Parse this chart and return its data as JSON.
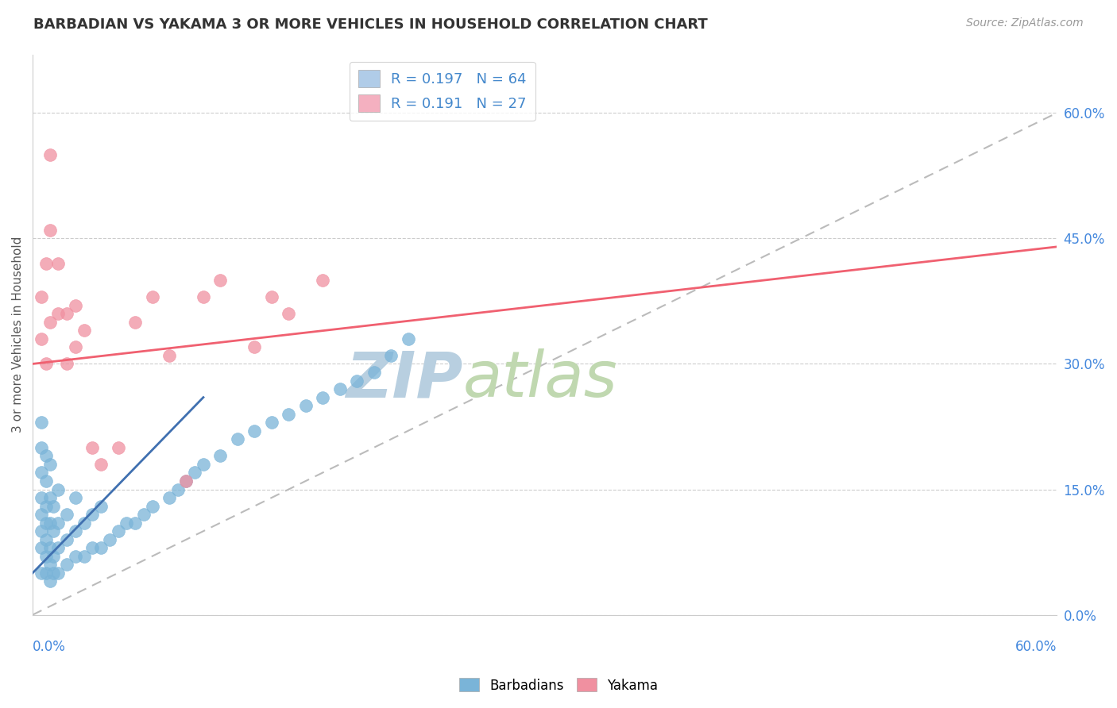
{
  "title": "BARBADIAN VS YAKAMA 3 OR MORE VEHICLES IN HOUSEHOLD CORRELATION CHART",
  "source": "Source: ZipAtlas.com",
  "ylabel": "3 or more Vehicles in Household",
  "ytick_values": [
    0,
    15,
    30,
    45,
    60
  ],
  "xmin": 0,
  "xmax": 60,
  "ymin": 0,
  "ymax": 67,
  "watermark_zip": "ZIP",
  "watermark_atlas": "atlas",
  "watermark_color_zip": "#b8cfe0",
  "watermark_color_atlas": "#c0d8b0",
  "barbadian_color": "#7ab4d8",
  "yakama_color": "#f090a0",
  "barbadian_line_color": "#4070b0",
  "yakama_line_color": "#f06070",
  "ref_line_color": "#bbbbbb",
  "legend_entries": [
    {
      "label": "R = 0.197   N = 64",
      "color": "#b0cce8"
    },
    {
      "label": "R = 0.191   N = 27",
      "color": "#f4b0c0"
    }
  ],
  "barbadian_scatter_x": [
    0.5,
    0.5,
    0.5,
    0.5,
    0.5,
    0.5,
    0.5,
    0.5,
    0.8,
    0.8,
    0.8,
    0.8,
    0.8,
    0.8,
    0.8,
    1.0,
    1.0,
    1.0,
    1.0,
    1.0,
    1.0,
    1.2,
    1.2,
    1.2,
    1.2,
    1.5,
    1.5,
    1.5,
    1.5,
    2.0,
    2.0,
    2.0,
    2.5,
    2.5,
    2.5,
    3.0,
    3.0,
    3.5,
    3.5,
    4.0,
    4.0,
    4.5,
    5.0,
    5.5,
    6.0,
    6.5,
    7.0,
    8.0,
    8.5,
    9.0,
    9.5,
    10.0,
    11.0,
    12.0,
    13.0,
    14.0,
    15.0,
    16.0,
    17.0,
    18.0,
    19.0,
    20.0,
    21.0,
    22.0
  ],
  "barbadian_scatter_y": [
    5,
    8,
    10,
    12,
    14,
    17,
    20,
    23,
    5,
    7,
    9,
    11,
    13,
    16,
    19,
    4,
    6,
    8,
    11,
    14,
    18,
    5,
    7,
    10,
    13,
    5,
    8,
    11,
    15,
    6,
    9,
    12,
    7,
    10,
    14,
    7,
    11,
    8,
    12,
    8,
    13,
    9,
    10,
    11,
    11,
    12,
    13,
    14,
    15,
    16,
    17,
    18,
    19,
    21,
    22,
    23,
    24,
    25,
    26,
    27,
    28,
    29,
    31,
    33
  ],
  "yakama_scatter_x": [
    0.5,
    0.5,
    0.8,
    0.8,
    1.0,
    1.0,
    1.0,
    1.5,
    1.5,
    2.0,
    2.0,
    2.5,
    2.5,
    3.0,
    3.5,
    4.0,
    5.0,
    6.0,
    7.0,
    8.0,
    9.0,
    10.0,
    11.0,
    13.0,
    14.0,
    15.0,
    17.0
  ],
  "yakama_scatter_y": [
    33,
    38,
    30,
    42,
    35,
    46,
    55,
    36,
    42,
    30,
    36,
    32,
    37,
    34,
    20,
    18,
    20,
    35,
    38,
    31,
    16,
    38,
    40,
    32,
    38,
    36,
    40
  ],
  "barbadian_trend_x": [
    0,
    10
  ],
  "barbadian_trend_y": [
    5,
    26
  ],
  "yakama_trend_x": [
    0,
    60
  ],
  "yakama_trend_y": [
    30,
    44
  ],
  "ref_line_x": [
    0,
    60
  ],
  "ref_line_y": [
    0,
    60
  ]
}
